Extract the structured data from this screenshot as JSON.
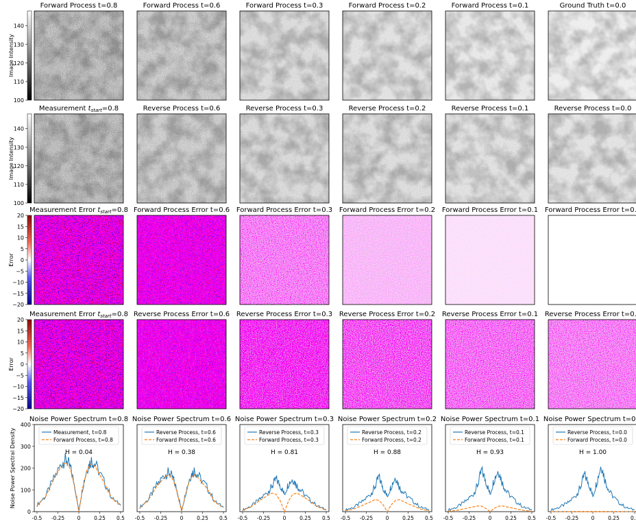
{
  "colors": {
    "blue": "#1f77b4",
    "orange": "#ff7f0e",
    "err_neg": "#0b0ba8",
    "err_pos": "#c4070d"
  },
  "rows": [
    {
      "kind": "gray",
      "titles": [
        "Forward Process t=0.8",
        "Forward Process t=0.6",
        "Forward Process t=0.3",
        "Forward Process t=0.2",
        "Forward Process t=0.1",
        "Ground Truth t=0.0"
      ],
      "noise": [
        0.8,
        0.6,
        0.3,
        0.2,
        0.1,
        0.0
      ],
      "cbar": {
        "label": "Image Intensity",
        "ticks": [
          "140",
          "130",
          "120",
          "110",
          "100"
        ],
        "range": [
          100,
          148
        ]
      }
    },
    {
      "kind": "gray",
      "titles": [
        "Measurement t_start=0.8",
        "Reverse Process t=0.6",
        "Reverse Process t=0.3",
        "Reverse Process t=0.2",
        "Reverse Process t=0.1",
        "Reverse Process t=0.0"
      ],
      "noise": [
        0.8,
        0.55,
        0.35,
        0.28,
        0.22,
        0.18
      ],
      "cbar": {
        "label": "Image Intensity",
        "ticks": [
          "140",
          "130",
          "120",
          "110",
          "100"
        ],
        "range": [
          100,
          148
        ]
      }
    },
    {
      "kind": "err",
      "titles": [
        "Measurement Error t_start=0.8",
        "Forward Process Error t=0.6",
        "Forward Process Error t=0.3",
        "Forward Process Error t=0.2",
        "Forward Process Error t=0.1",
        "Forward Process Error t=0.0"
      ],
      "noise": [
        0.8,
        0.6,
        0.3,
        0.2,
        0.1,
        0.0
      ],
      "cbar": {
        "label": "Error",
        "ticks": [
          "20",
          "15",
          "10",
          "5",
          "0",
          "−5",
          "−10",
          "−15",
          "−20"
        ],
        "range": [
          -20,
          20
        ]
      }
    },
    {
      "kind": "err",
      "titles": [
        "Measurement Error t_start=0.8",
        "Reverse Process Error t=0.6",
        "Reverse Process Error t=0.3",
        "Reverse Process Error t=0.2",
        "Reverse Process Error t=0.1",
        "Reverse Process Error t=0.0"
      ],
      "noise": [
        0.8,
        0.55,
        0.4,
        0.35,
        0.32,
        0.3
      ],
      "cbar": {
        "label": "Error",
        "ticks": [
          "20",
          "15",
          "10",
          "5",
          "0",
          "−5",
          "−10",
          "−15",
          "−20"
        ],
        "range": [
          -20,
          20
        ]
      }
    }
  ],
  "chart_data": {
    "type": "line",
    "ylabel": "Noise Power Spectral Density",
    "ylim": [
      0,
      400
    ],
    "xlim": [
      -0.5,
      0.5
    ],
    "yticks": [
      "0",
      "100",
      "200",
      "300",
      "400"
    ],
    "xticks": [
      "-0.5",
      "-0.25",
      "0",
      "0.25",
      "0.5"
    ],
    "panels": [
      {
        "title": "Noise Power Spectrum t=0.8",
        "annotation": "H = 0.04",
        "legend": [
          "Measurement, t=0.8",
          "Forward Process, t=0.8"
        ],
        "x": [
          -0.5,
          -0.4,
          -0.3,
          -0.2,
          -0.15,
          -0.1,
          -0.05,
          0,
          0.05,
          0.1,
          0.15,
          0.2,
          0.3,
          0.4,
          0.5
        ],
        "series": [
          {
            "name": "Measurement, t=0.8",
            "values": [
              30,
              70,
              150,
              225,
              240,
              200,
              120,
              5,
              120,
              200,
              235,
              215,
              140,
              60,
              30
            ]
          },
          {
            "name": "Forward Process, t=0.8",
            "values": [
              28,
              68,
              148,
              215,
              225,
              195,
              115,
              0,
              115,
              195,
              220,
              205,
              135,
              58,
              28
            ]
          }
        ]
      },
      {
        "title": "Noise Power Spectrum t=0.6",
        "annotation": "H = 0.38",
        "legend": [
          "Reverse Process, t=0.6",
          "Forward Process, t=0.6"
        ],
        "x": [
          -0.5,
          -0.4,
          -0.3,
          -0.2,
          -0.15,
          -0.1,
          -0.05,
          0,
          0.05,
          0.1,
          0.15,
          0.2,
          0.3,
          0.4,
          0.5
        ],
        "series": [
          {
            "name": "Reverse Process, t=0.6",
            "values": [
              20,
              55,
              120,
              170,
              180,
              150,
              90,
              5,
              90,
              160,
              190,
              165,
              115,
              45,
              20
            ]
          },
          {
            "name": "Forward Process, t=0.6",
            "values": [
              18,
              52,
              115,
              160,
              170,
              145,
              85,
              0,
              85,
              150,
              170,
              155,
              108,
              43,
              18
            ]
          }
        ]
      },
      {
        "title": "Noise Power Spectrum t=0.3",
        "annotation": "H = 0.81",
        "legend": [
          "Reverse Process, t=0.3",
          "Forward Process, t=0.3"
        ],
        "x": [
          -0.5,
          -0.4,
          -0.3,
          -0.2,
          -0.15,
          -0.1,
          -0.05,
          0,
          0.05,
          0.1,
          0.15,
          0.2,
          0.3,
          0.4,
          0.5
        ],
        "series": [
          {
            "name": "Reverse Process, t=0.3",
            "values": [
              8,
              25,
              55,
              90,
              115,
              150,
              120,
              80,
              130,
              150,
              120,
              95,
              55,
              25,
              8
            ]
          },
          {
            "name": "Forward Process, t=0.3",
            "values": [
              6,
              22,
              50,
              75,
              85,
              80,
              50,
              0,
              50,
              80,
              85,
              75,
              50,
              22,
              6
            ]
          }
        ]
      },
      {
        "title": "Noise Power Spectrum t=0.2",
        "annotation": "H = 0.88",
        "legend": [
          "Reverse Process, t=0.2",
          "Forward Process, t=0.2"
        ],
        "x": [
          -0.5,
          -0.4,
          -0.3,
          -0.2,
          -0.15,
          -0.1,
          -0.05,
          0,
          0.05,
          0.1,
          0.15,
          0.2,
          0.3,
          0.4,
          0.5
        ],
        "series": [
          {
            "name": "Reverse Process, t=0.2",
            "values": [
              8,
              20,
              45,
              80,
              110,
              160,
              110,
              70,
              120,
              160,
              110,
              85,
              50,
              20,
              8
            ]
          },
          {
            "name": "Forward Process, t=0.2",
            "values": [
              4,
              12,
              28,
              45,
              55,
              52,
              32,
              0,
              32,
              52,
              55,
              45,
              28,
              12,
              4
            ]
          }
        ]
      },
      {
        "title": "Noise Power Spectrum t=0.1",
        "annotation": "H = 0.93",
        "legend": [
          "Reverse Process, t=0.1",
          "Forward Process, t=0.1"
        ],
        "x": [
          -0.5,
          -0.4,
          -0.3,
          -0.2,
          -0.15,
          -0.1,
          -0.05,
          0,
          0.05,
          0.1,
          0.15,
          0.2,
          0.3,
          0.4,
          0.5
        ],
        "series": [
          {
            "name": "Reverse Process, t=0.1",
            "values": [
              8,
              20,
              45,
              80,
              120,
              190,
              140,
              80,
              150,
              190,
              130,
              90,
              50,
              20,
              8
            ]
          },
          {
            "name": "Forward Process, t=0.1",
            "values": [
              2,
              6,
              14,
              22,
              26,
              25,
              15,
              0,
              15,
              25,
              26,
              22,
              14,
              6,
              2
            ]
          }
        ]
      },
      {
        "title": "Noise Power Spectrum t=0.0",
        "annotation": "H = 1.00",
        "legend": [
          "Reverse Process, t=0.0",
          "Forward Process, t=0.0"
        ],
        "x": [
          -0.5,
          -0.4,
          -0.3,
          -0.2,
          -0.15,
          -0.1,
          -0.05,
          0,
          0.05,
          0.1,
          0.15,
          0.2,
          0.3,
          0.4,
          0.5
        ],
        "series": [
          {
            "name": "Reverse Process, t=0.0",
            "values": [
              8,
              20,
              40,
              75,
              110,
              170,
              130,
              70,
              140,
              215,
              140,
              90,
              45,
              18,
              8
            ]
          },
          {
            "name": "Forward Process, t=0.0",
            "values": [
              0,
              0,
              0,
              0,
              0,
              0,
              0,
              0,
              0,
              0,
              0,
              0,
              0,
              0,
              0
            ]
          }
        ]
      }
    ]
  }
}
